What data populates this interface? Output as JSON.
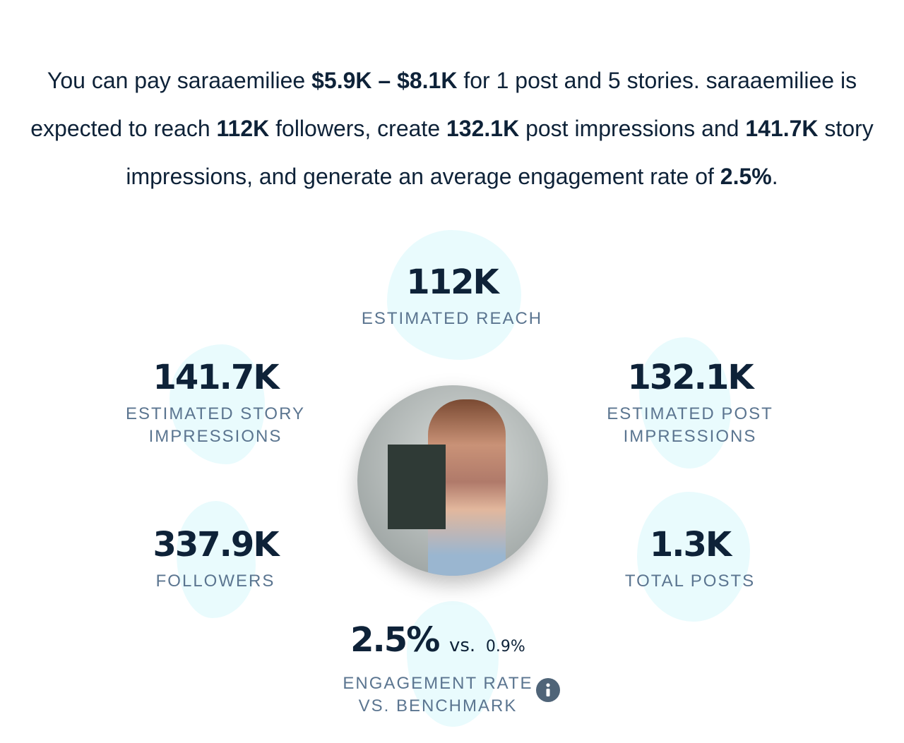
{
  "summary": {
    "parts": [
      "You can pay saraaemiliee ",
      "$5.9K – $8.1K",
      " for 1 post and 5 stories. saraaemiliee is expected to reach ",
      "112K",
      " followers, create ",
      "132.1K",
      " post impressions and ",
      "141.7K",
      " story impressions, and generate an average engagement rate of ",
      "2.5%",
      "."
    ]
  },
  "stats": {
    "reach": {
      "value": "112K",
      "label": [
        "ESTIMATED REACH"
      ]
    },
    "story_impressions": {
      "value": "141.7K",
      "label": [
        "ESTIMATED STORY",
        "IMPRESSIONS"
      ]
    },
    "post_impressions": {
      "value": "132.1K",
      "label": [
        "ESTIMATED POST",
        "IMPRESSIONS"
      ]
    },
    "followers": {
      "value": "337.9K",
      "label": [
        "FOLLOWERS"
      ]
    },
    "total_posts": {
      "value": "1.3K",
      "label": [
        "TOTAL POSTS"
      ]
    },
    "engagement": {
      "value": "2.5%",
      "vs": "vs.",
      "benchmark": "0.9%",
      "label": [
        "ENGAGEMENT RATE",
        "VS. BENCHMARK"
      ]
    }
  }
}
